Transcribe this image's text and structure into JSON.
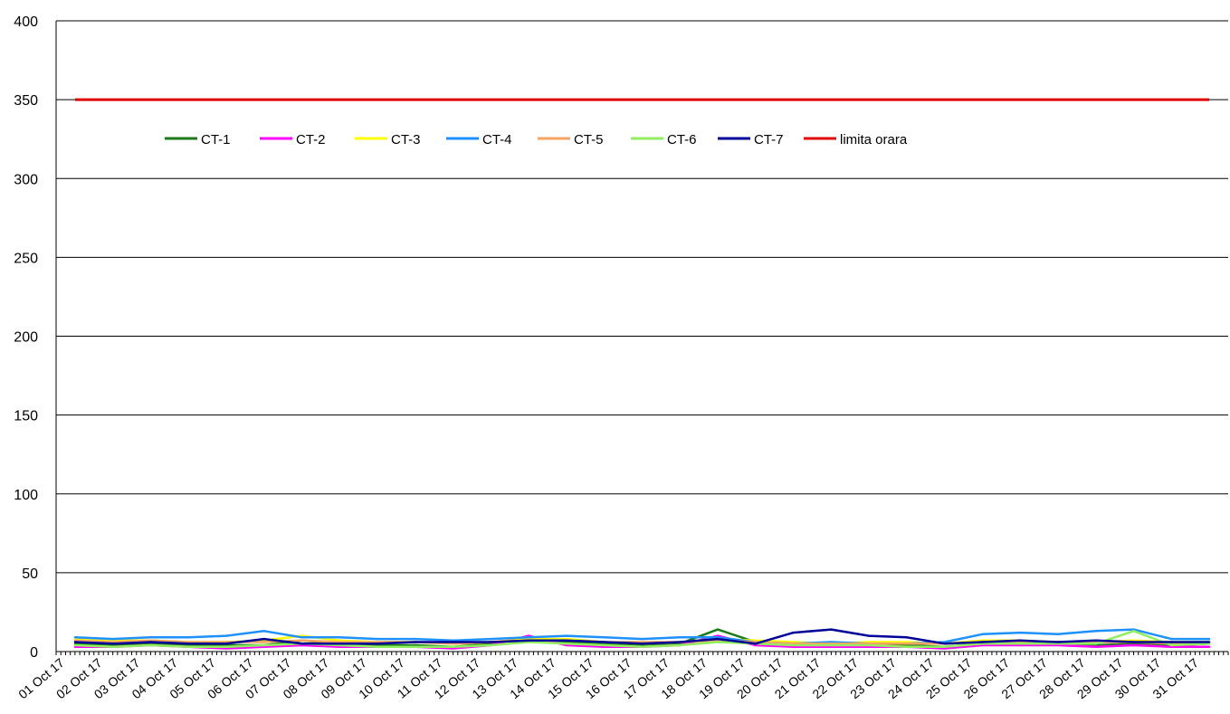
{
  "chart_data": {
    "type": "line",
    "title": "",
    "xlabel": "",
    "ylabel": "",
    "ylim": [
      0,
      400
    ],
    "yticks": [
      0,
      50,
      100,
      150,
      200,
      250,
      300,
      350,
      400
    ],
    "grid": "horizontal",
    "legend_position": "top-left inside plot",
    "x_tick_labels": [
      "01 Oct 17",
      "02 Oct 17",
      "03 Oct 17",
      "04 Oct 17",
      "05 Oct 17",
      "06 Oct 17",
      "07 Oct 17",
      "08 Oct 17",
      "09 Oct 17",
      "10 Oct 17",
      "11 Oct 17",
      "12 Oct 17",
      "13 Oct 17",
      "14 Oct 17",
      "15 Oct 17",
      "16 Oct 17",
      "17 Oct 17",
      "18 Oct 17",
      "19 Oct 17",
      "20 Oct 17",
      "21 Oct 17",
      "22 Oct 17",
      "23 Oct 17",
      "24 Oct 17",
      "25 Oct 17",
      "26 Oct 17",
      "27 Oct 17",
      "28 Oct 17",
      "29 Oct 17",
      "30 Oct 17",
      "31 Oct 17"
    ],
    "series": [
      {
        "name": "CT-1",
        "color": "#1a7a1a",
        "values": [
          5,
          4,
          5,
          4,
          4,
          4,
          7,
          5,
          4,
          4,
          3,
          5,
          9,
          6,
          5,
          4,
          5,
          14,
          6,
          4,
          3,
          4,
          4,
          3,
          5,
          6,
          5,
          4,
          5,
          4,
          5
        ]
      },
      {
        "name": "CT-2",
        "color": "#ff00ff",
        "values": [
          3,
          3,
          4,
          3,
          2,
          3,
          4,
          3,
          3,
          3,
          2,
          4,
          10,
          4,
          3,
          3,
          4,
          10,
          4,
          3,
          3,
          3,
          3,
          2,
          4,
          4,
          4,
          3,
          4,
          3,
          3
        ]
      },
      {
        "name": "CT-3",
        "color": "#ffff00",
        "values": [
          8,
          7,
          7,
          6,
          6,
          7,
          10,
          7,
          6,
          6,
          5,
          6,
          8,
          8,
          6,
          5,
          6,
          8,
          7,
          6,
          5,
          6,
          6,
          5,
          7,
          7,
          6,
          6,
          7,
          6,
          6
        ]
      },
      {
        "name": "CT-4",
        "color": "#1e90ff",
        "values": [
          9,
          8,
          9,
          9,
          10,
          13,
          9,
          9,
          8,
          8,
          7,
          8,
          9,
          10,
          9,
          8,
          9,
          9,
          6,
          5,
          6,
          5,
          5,
          6,
          11,
          12,
          11,
          13,
          14,
          8,
          8
        ]
      },
      {
        "name": "CT-5",
        "color": "#f4a460",
        "values": [
          7,
          6,
          7,
          6,
          6,
          6,
          7,
          6,
          6,
          6,
          5,
          6,
          7,
          7,
          6,
          6,
          6,
          7,
          6,
          5,
          5,
          5,
          5,
          5,
          6,
          6,
          6,
          6,
          6,
          5,
          6
        ]
      },
      {
        "name": "CT-6",
        "color": "#90ee60",
        "values": [
          4,
          3,
          4,
          3,
          3,
          4,
          5,
          4,
          3,
          3,
          3,
          4,
          6,
          5,
          4,
          3,
          4,
          6,
          5,
          4,
          4,
          4,
          3,
          3,
          5,
          5,
          5,
          5,
          13,
          4,
          5
        ]
      },
      {
        "name": "CT-7",
        "color": "#000099",
        "values": [
          6,
          5,
          6,
          5,
          5,
          8,
          5,
          5,
          5,
          6,
          6,
          6,
          7,
          7,
          6,
          5,
          6,
          8,
          5,
          12,
          14,
          10,
          9,
          5,
          6,
          7,
          6,
          7,
          6,
          6,
          6
        ]
      },
      {
        "name": "limita orara",
        "color": "#e00000",
        "values": [
          350,
          350,
          350,
          350,
          350,
          350,
          350,
          350,
          350,
          350,
          350,
          350,
          350,
          350,
          350,
          350,
          350,
          350,
          350,
          350,
          350,
          350,
          350,
          350,
          350,
          350,
          350,
          350,
          350,
          350,
          350
        ]
      }
    ]
  }
}
